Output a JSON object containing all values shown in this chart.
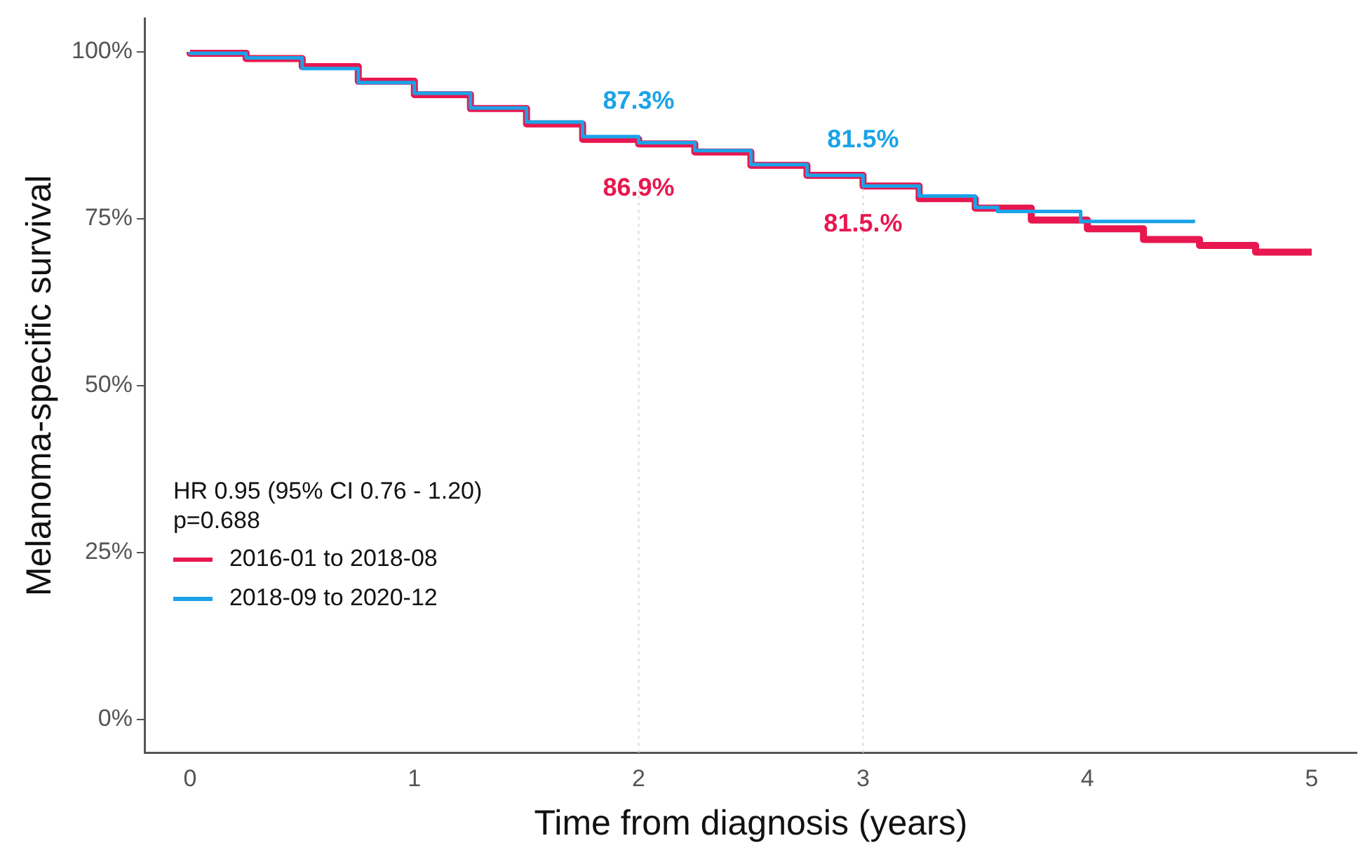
{
  "chart_data": {
    "type": "step",
    "xlabel": "Time from diagnosis (years)",
    "ylabel": "Melanoma-specific survival",
    "annotations": [
      "HR 0.95 (95% CI 0.76 - 1.20)\np=0.688"
    ],
    "xlim": [
      -0.2,
      5.2
    ],
    "xticks": [
      0,
      1,
      2,
      3,
      4,
      5
    ],
    "ylim": [
      -5,
      105
    ],
    "yticks": [
      {
        "value": 0,
        "label": "0%"
      },
      {
        "value": 25,
        "label": "25%"
      },
      {
        "value": 50,
        "label": "50%"
      },
      {
        "value": 75,
        "label": "75%"
      },
      {
        "value": 100,
        "label": "100%"
      }
    ],
    "grid": false,
    "legend": "bottom left",
    "ref_lines": [
      {
        "axis": "x",
        "value": 2,
        "color": "#d9d9d9",
        "line_style": "dotted"
      },
      {
        "axis": "x",
        "value": 3,
        "color": "#d9d9d9",
        "line_style": "dotted"
      }
    ],
    "series": [
      {
        "name": "2016-01 to 2018-08",
        "color": "#e8174f",
        "x": [
          0,
          0.25,
          0.5,
          0.75,
          1,
          1.25,
          1.5,
          1.75,
          2,
          2.25,
          2.5,
          2.75,
          3,
          3.25,
          3.5,
          3.75,
          4,
          4.25,
          4.5,
          4.75,
          5
        ],
        "values": [
          100,
          99.8,
          99,
          97.8,
          95.6,
          93.6,
          91.5,
          89.2,
          86.9,
          86.2,
          85.0,
          83.0,
          81.5,
          79.9,
          78.0,
          76.6,
          74.8,
          73.5,
          71.9,
          71.0,
          70.0
        ],
        "value_labels": [
          null,
          null,
          null,
          null,
          null,
          null,
          null,
          null,
          "86.9%",
          null,
          null,
          null,
          "81.5.%",
          null,
          null,
          null,
          null,
          null,
          null,
          null,
          null
        ]
      },
      {
        "name": "2018-09 to 2020-12",
        "color": "#1aa3e8",
        "x": [
          0,
          0.25,
          0.5,
          0.75,
          1,
          1.25,
          1.5,
          1.75,
          2,
          2.25,
          2.5,
          2.75,
          3,
          3.25,
          3.5,
          3.6,
          3.97,
          4.22,
          4.48
        ],
        "values": [
          100,
          99.8,
          99.1,
          97.5,
          95.4,
          93.8,
          91.6,
          89.5,
          87.3,
          86.4,
          85.2,
          83.1,
          81.5,
          79.9,
          78.4,
          76.7,
          76.1,
          74.6,
          74.6
        ],
        "value_labels": [
          null,
          null,
          null,
          null,
          null,
          null,
          null,
          null,
          "87.3%",
          null,
          null,
          null,
          "81.5%",
          null,
          null,
          null,
          null,
          null,
          null
        ]
      }
    ]
  }
}
